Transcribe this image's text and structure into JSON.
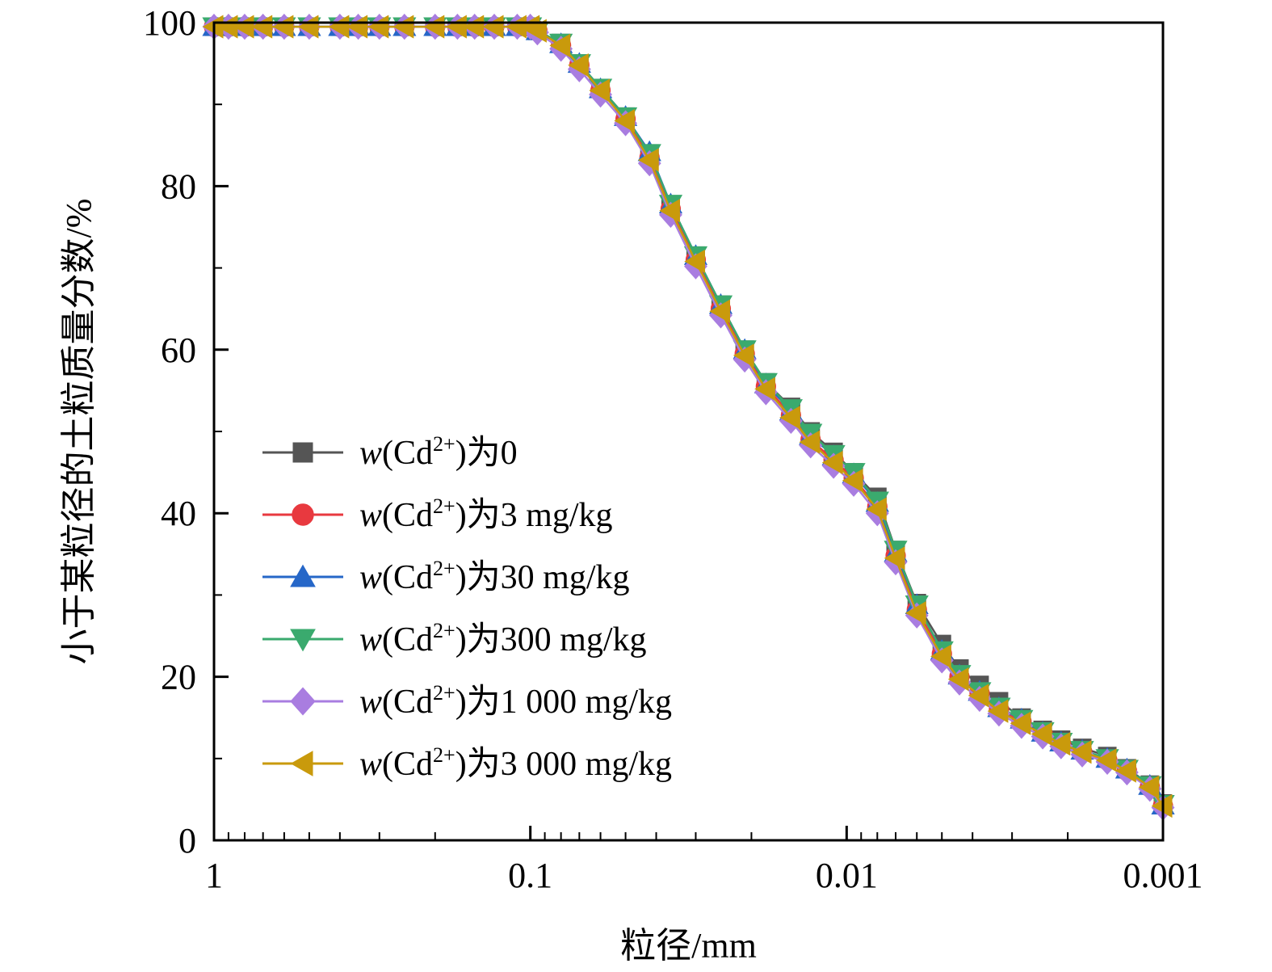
{
  "chart_data": {
    "type": "line",
    "xlabel": "粒径/mm",
    "ylabel": "小于某粒径的土粒质量分数/%",
    "x_scale": "log",
    "x_reversed": true,
    "xlim": [
      1,
      0.001
    ],
    "ylim": [
      0,
      100
    ],
    "x_ticks": [
      {
        "value": 1,
        "label": "1"
      },
      {
        "value": 0.1,
        "label": "0.1"
      },
      {
        "value": 0.01,
        "label": "0.01"
      },
      {
        "value": 0.001,
        "label": "0.001"
      }
    ],
    "y_ticks": [
      {
        "value": 0,
        "label": "0"
      },
      {
        "value": 20,
        "label": "20"
      },
      {
        "value": 40,
        "label": "40"
      },
      {
        "value": 60,
        "label": "60"
      },
      {
        "value": 80,
        "label": "80"
      },
      {
        "value": 100,
        "label": "100"
      }
    ],
    "grid": false,
    "legend_position": "center-left",
    "x": [
      1.0,
      0.9,
      0.8,
      0.7,
      0.6,
      0.5,
      0.4,
      0.35,
      0.3,
      0.25,
      0.2,
      0.17,
      0.15,
      0.13,
      0.11,
      0.1,
      0.095,
      0.08,
      0.07,
      0.06,
      0.05,
      0.042,
      0.036,
      0.03,
      0.025,
      0.021,
      0.018,
      0.015,
      0.013,
      0.011,
      0.0095,
      0.008,
      0.007,
      0.006,
      0.005,
      0.0044,
      0.0038,
      0.0033,
      0.0028,
      0.0024,
      0.0021,
      0.0018,
      0.0015,
      0.0013,
      0.0011,
      0.001
    ],
    "series": [
      {
        "name": "w(Cd²⁺)为0",
        "marker": "square",
        "color": "#555555",
        "values": [
          99.5,
          99.5,
          99.5,
          99.5,
          99.5,
          99.5,
          99.5,
          99.5,
          99.5,
          99.5,
          99.5,
          99.5,
          99.5,
          99.5,
          99.5,
          99.5,
          99.0,
          97.5,
          95.0,
          92.0,
          88.5,
          84.0,
          77.5,
          71.5,
          65.5,
          60.0,
          56.0,
          53.0,
          50.0,
          47.5,
          45.0,
          42.0,
          35.5,
          29.0,
          24.0,
          21.0,
          19.0,
          17.0,
          15.0,
          13.5,
          12.3,
          11.3,
          10.3,
          8.8,
          6.8,
          4.5
        ]
      },
      {
        "name": "w(Cd²⁺)为3 mg/kg",
        "marker": "circle",
        "color": "#e8393f",
        "values": [
          99.5,
          99.5,
          99.5,
          99.5,
          99.5,
          99.5,
          99.5,
          99.5,
          99.5,
          99.5,
          99.5,
          99.5,
          99.5,
          99.5,
          99.5,
          99.5,
          99.0,
          97.2,
          94.8,
          91.7,
          88.2,
          83.5,
          77.2,
          71.0,
          65.0,
          59.5,
          55.5,
          52.0,
          49.0,
          46.5,
          44.3,
          40.8,
          34.8,
          28.2,
          22.8,
          20.0,
          18.0,
          16.0,
          14.5,
          13.0,
          11.8,
          10.8,
          9.8,
          8.5,
          6.5,
          4.2
        ]
      },
      {
        "name": "w(Cd²⁺)为30 mg/kg",
        "marker": "triangle-up",
        "color": "#2667c8",
        "values": [
          99.5,
          99.5,
          99.5,
          99.5,
          99.5,
          99.5,
          99.5,
          99.5,
          99.5,
          99.5,
          99.5,
          99.5,
          99.5,
          99.5,
          99.5,
          99.5,
          99.0,
          97.4,
          95.0,
          91.9,
          88.5,
          84.2,
          77.8,
          71.5,
          65.5,
          60.0,
          55.8,
          52.5,
          49.5,
          47.0,
          44.8,
          41.3,
          35.2,
          28.8,
          23.2,
          20.2,
          18.2,
          16.2,
          14.8,
          13.2,
          12.0,
          11.0,
          10.0,
          8.7,
          6.7,
          4.3
        ]
      },
      {
        "name": "w(Cd²⁺)为300 mg/kg",
        "marker": "triangle-down",
        "color": "#3aaa6e",
        "values": [
          99.5,
          99.5,
          99.5,
          99.5,
          99.5,
          99.5,
          99.5,
          99.5,
          99.5,
          99.5,
          99.5,
          99.5,
          99.5,
          99.5,
          99.5,
          99.5,
          99.0,
          97.5,
          95.0,
          92.0,
          88.5,
          84.0,
          77.8,
          71.5,
          65.5,
          60.0,
          56.0,
          52.8,
          49.8,
          47.2,
          45.0,
          41.5,
          35.5,
          28.8,
          23.2,
          20.3,
          18.2,
          16.3,
          14.8,
          13.3,
          12.0,
          11.0,
          10.0,
          8.7,
          6.7,
          4.4
        ]
      },
      {
        "name": "w(Cd²⁺)为1 000 mg/kg",
        "marker": "diamond",
        "color": "#a97de0",
        "values": [
          99.5,
          99.5,
          99.5,
          99.5,
          99.5,
          99.5,
          99.5,
          99.5,
          99.5,
          99.5,
          99.5,
          99.5,
          99.5,
          99.5,
          99.5,
          99.5,
          98.8,
          96.8,
          94.3,
          91.2,
          87.7,
          82.8,
          76.5,
          70.2,
          64.2,
          58.8,
          54.8,
          51.3,
          48.3,
          45.8,
          43.6,
          40.0,
          34.0,
          27.5,
          22.0,
          19.3,
          17.3,
          15.5,
          14.0,
          12.7,
          11.5,
          10.5,
          9.6,
          8.3,
          6.3,
          4.0
        ]
      },
      {
        "name": "w(Cd²⁺)为3 000 mg/kg",
        "marker": "triangle-left",
        "color": "#c99a0c",
        "values": [
          99.5,
          99.5,
          99.5,
          99.5,
          99.5,
          99.5,
          99.5,
          99.5,
          99.5,
          99.5,
          99.5,
          99.5,
          99.5,
          99.5,
          99.5,
          99.5,
          99.0,
          97.2,
          94.8,
          91.7,
          88.0,
          83.2,
          77.0,
          70.8,
          64.7,
          59.3,
          55.2,
          51.7,
          48.7,
          46.2,
          44.0,
          40.5,
          34.5,
          27.8,
          22.5,
          19.7,
          17.7,
          15.8,
          14.3,
          13.0,
          11.8,
          10.8,
          9.8,
          8.5,
          6.5,
          4.2
        ]
      }
    ]
  }
}
